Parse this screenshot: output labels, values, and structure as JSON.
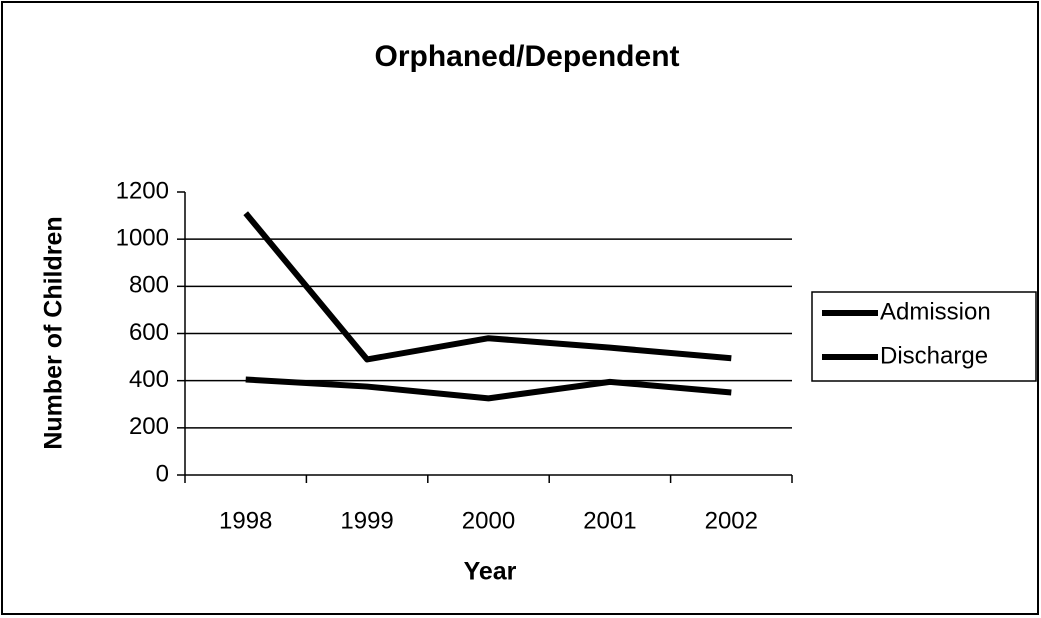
{
  "chart_data": {
    "type": "line",
    "title": "Orphaned/Dependent",
    "x_label": "Year",
    "y_label": "Number of Children",
    "categories": [
      "1998",
      "1999",
      "2000",
      "2001",
      "2002"
    ],
    "series": [
      {
        "name": "Admission",
        "color": "#000000",
        "values": [
          1110,
          490,
          580,
          540,
          495
        ]
      },
      {
        "name": "Discharge",
        "color": "#000000",
        "values": [
          405,
          375,
          325,
          395,
          350
        ]
      }
    ],
    "ylim": [
      0,
      1200
    ],
    "yticks": [
      0,
      200,
      400,
      600,
      800,
      1000,
      1200
    ],
    "grid": true,
    "legend": "right"
  }
}
